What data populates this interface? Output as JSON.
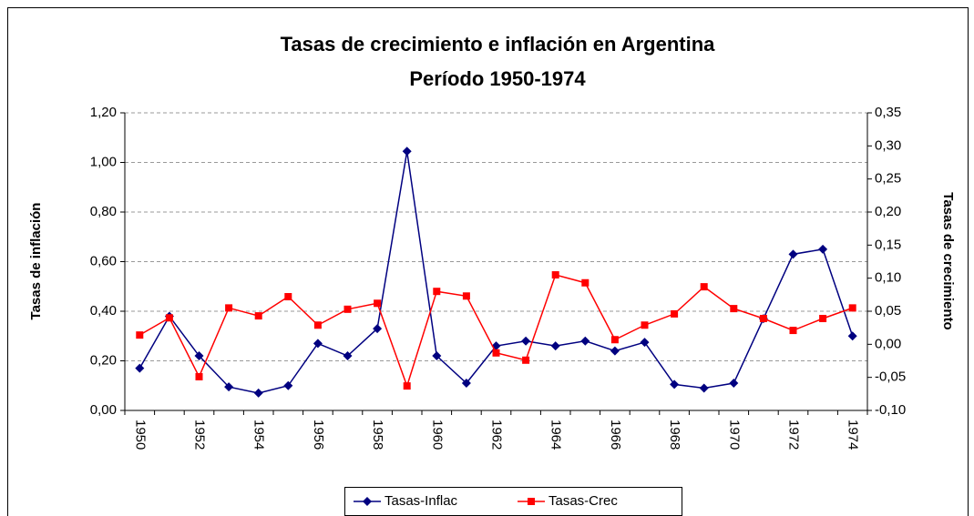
{
  "chart_data": {
    "type": "line",
    "title": "Tasas de crecimiento e inflación en Argentina",
    "subtitle": "Período 1950-1974",
    "y_label": "Tasas de inflación",
    "y2_label": "Tasas de crecimiento",
    "categories": [
      "1950",
      null,
      "1952",
      null,
      "1954",
      null,
      "1956",
      null,
      "1958",
      null,
      "1960",
      null,
      "1962",
      null,
      "1964",
      null,
      "1966",
      null,
      "1968",
      null,
      "1970",
      null,
      "1972",
      null,
      "1974"
    ],
    "series": [
      {
        "name": "Tasas-Inflac",
        "color": "#000080",
        "marker": "diamond",
        "values": [
          0.17,
          0.38,
          0.22,
          0.095,
          0.07,
          0.1,
          0.27,
          0.22,
          0.33,
          1.045,
          0.22,
          0.11,
          0.26,
          0.28,
          0.26,
          0.28,
          0.24,
          0.275,
          0.105,
          0.09,
          0.11,
          0.37,
          0.63,
          0.65,
          0.3
        ]
      },
      {
        "name": "Tasas-Crec",
        "color": "#ff0000",
        "marker": "square",
        "axis": "y2",
        "values": [
          0.014,
          0.04,
          -0.049,
          0.055,
          0.043,
          0.072,
          0.029,
          0.053,
          0.062,
          -0.063,
          0.08,
          0.073,
          -0.013,
          -0.024,
          0.105,
          0.093,
          0.007,
          0.029,
          0.046,
          0.087,
          0.054,
          0.039,
          0.021,
          0.039,
          0.055
        ]
      }
    ],
    "ylim": [
      0,
      1.2
    ],
    "yticks": [
      {
        "value": 0,
        "label": "0,00"
      },
      {
        "value": 0.2,
        "label": "0,20"
      },
      {
        "value": 0.4,
        "label": "0,40"
      },
      {
        "value": 0.6,
        "label": "0,60"
      },
      {
        "value": 0.8,
        "label": "0,80"
      },
      {
        "value": 1.0,
        "label": "1,00"
      },
      {
        "value": 1.2,
        "label": "1,20"
      }
    ],
    "y2lim": [
      -0.1,
      0.35
    ],
    "y2ticks": [
      {
        "value": -0.1,
        "label": "-0,10"
      },
      {
        "value": -0.05,
        "label": "-0,05"
      },
      {
        "value": 0,
        "label": "0,00"
      },
      {
        "value": 0.05,
        "label": "0,05"
      },
      {
        "value": 0.1,
        "label": "0,10"
      },
      {
        "value": 0.15,
        "label": "0,15"
      },
      {
        "value": 0.2,
        "label": "0,20"
      },
      {
        "value": 0.25,
        "label": "0,25"
      },
      {
        "value": 0.3,
        "label": "0,30"
      },
      {
        "value": 0.35,
        "label": "0,35"
      }
    ],
    "grid": true,
    "legend": "bottom"
  }
}
